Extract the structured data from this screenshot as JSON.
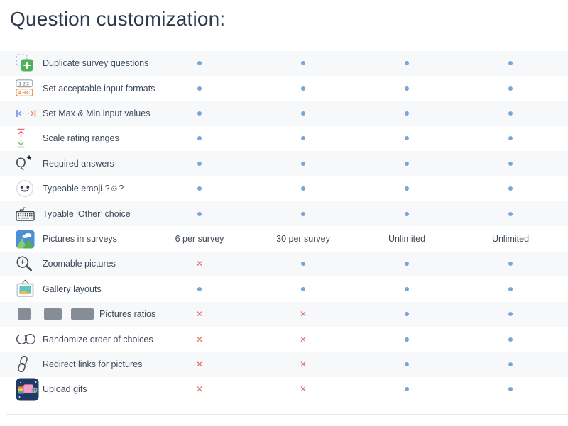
{
  "page": {
    "title": "Question customization:"
  },
  "colors": {
    "included_dot": "#7aa5dc",
    "excluded_cross": "#e26b6b",
    "row_alternate": "#f7f8fa",
    "text": "#3e4a59",
    "title": "#2c3a4d"
  },
  "symbols": {
    "included": "dot",
    "excluded": "cross",
    "cross_glyph": "✕"
  },
  "table": {
    "rows": [
      {
        "feature": "Duplicate survey questions",
        "icon": "duplicate-icon",
        "values": [
          "dot",
          "dot",
          "dot",
          "dot"
        ]
      },
      {
        "feature": "Set acceptable input formats",
        "icon": "input-formats-icon",
        "values": [
          "dot",
          "dot",
          "dot",
          "dot"
        ]
      },
      {
        "feature": "Set Max & Min input values",
        "icon": "max-min-icon",
        "values": [
          "dot",
          "dot",
          "dot",
          "dot"
        ]
      },
      {
        "feature": "Scale rating ranges",
        "icon": "scale-rating-icon",
        "values": [
          "dot",
          "dot",
          "dot",
          "dot"
        ]
      },
      {
        "feature": "Required answers",
        "icon": "required-answers-icon",
        "values": [
          "dot",
          "dot",
          "dot",
          "dot"
        ]
      },
      {
        "feature": "Typeable emoji ?☺?",
        "icon": "emoji-icon",
        "values": [
          "dot",
          "dot",
          "dot",
          "dot"
        ]
      },
      {
        "feature": "Typable ‘Other’ choice",
        "icon": "keyboard-icon",
        "values": [
          "dot",
          "dot",
          "dot",
          "dot"
        ]
      },
      {
        "feature": "Pictures in surveys",
        "icon": "pictures-icon",
        "values": [
          "6 per survey",
          "30 per survey",
          "Unlimited",
          "Unlimited"
        ]
      },
      {
        "feature": "Zoomable pictures",
        "icon": "zoom-in-icon",
        "values": [
          "cross",
          "dot",
          "dot",
          "dot"
        ]
      },
      {
        "feature": "Gallery layouts",
        "icon": "gallery-icon",
        "values": [
          "dot",
          "dot",
          "dot",
          "dot"
        ]
      },
      {
        "feature": "Pictures ratios",
        "icon": "picture-ratios-icon",
        "values": [
          "cross",
          "cross",
          "dot",
          "dot"
        ]
      },
      {
        "feature": "Randomize order of choices",
        "icon": "randomize-icon",
        "values": [
          "cross",
          "cross",
          "dot",
          "dot"
        ]
      },
      {
        "feature": "Redirect links for pictures",
        "icon": "link-icon",
        "values": [
          "cross",
          "cross",
          "dot",
          "dot"
        ]
      },
      {
        "feature": "Upload gifs",
        "icon": "gif-icon",
        "values": [
          "cross",
          "cross",
          "dot",
          "dot"
        ]
      }
    ]
  }
}
